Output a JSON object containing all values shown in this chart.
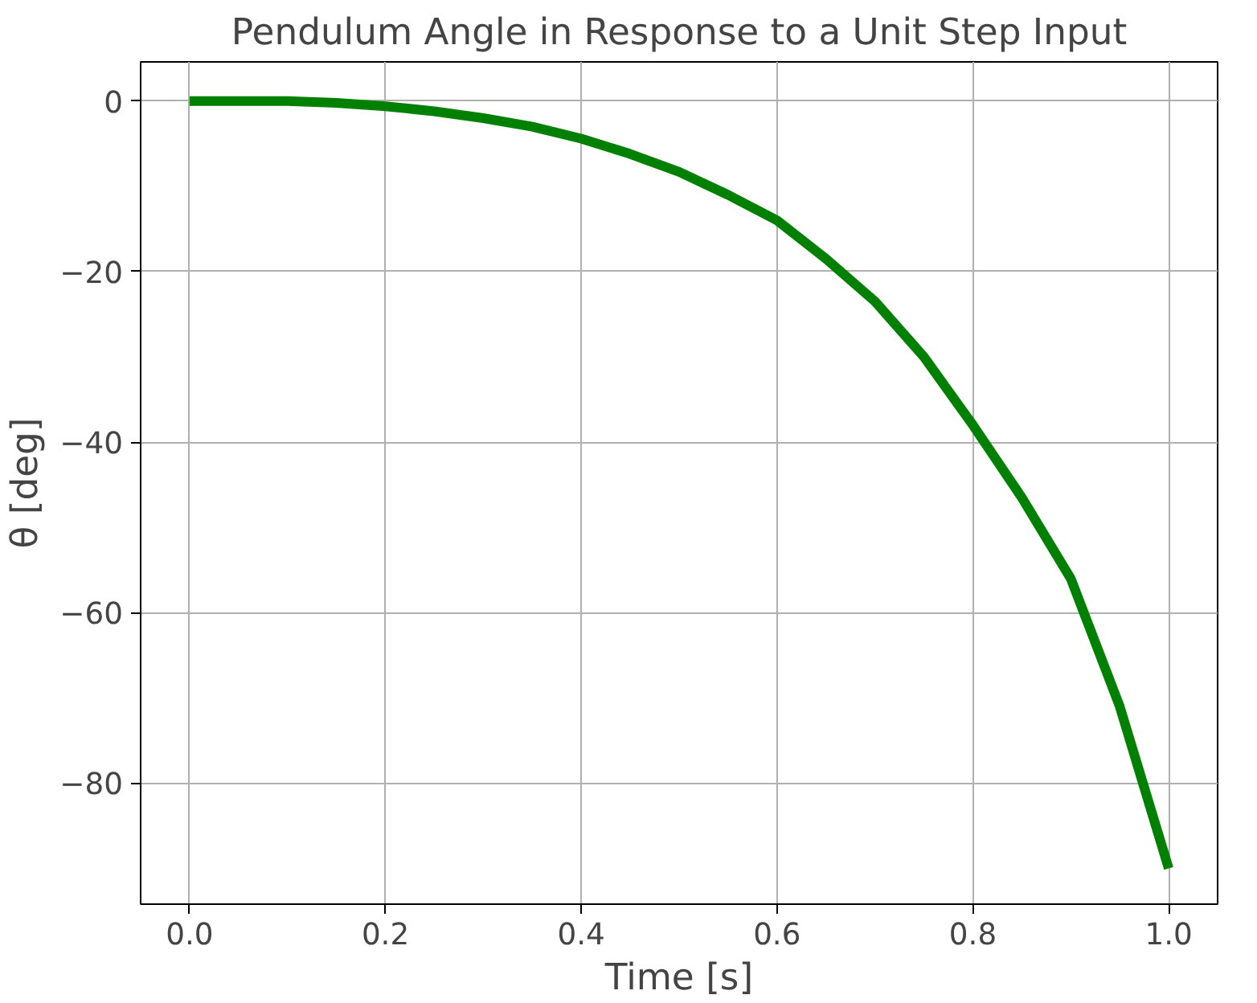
{
  "chart_data": {
    "type": "line",
    "title": "Pendulum Angle in Response to a Unit Step Input",
    "xlabel": "Time [s]",
    "ylabel": "θ [deg]",
    "x": [
      0,
      0.05,
      0.1,
      0.15,
      0.2,
      0.25,
      0.3,
      0.35,
      0.4,
      0.45,
      0.5,
      0.55,
      0.6,
      0.65,
      0.7,
      0.75,
      0.8,
      0.85,
      0.9,
      0.95,
      1.0
    ],
    "series": [
      {
        "color": "#008000",
        "values": [
          0,
          0,
          0,
          -0.2,
          -0.6,
          -1.2,
          -2,
          -3,
          -4.4,
          -6.2,
          -8.3,
          -11,
          -14,
          -18.5,
          -23.5,
          -30,
          -38,
          -46.5,
          -56,
          -71,
          -90
        ]
      }
    ],
    "xlim": [
      -0.05,
      1.05
    ],
    "ylim": [
      -94.2,
      4.6
    ],
    "xticks": [
      {
        "value": 0,
        "label": "0.0"
      },
      {
        "value": 0.2,
        "label": "0.2"
      },
      {
        "value": 0.4,
        "label": "0.4"
      },
      {
        "value": 0.6,
        "label": "0.6"
      },
      {
        "value": 0.8,
        "label": "0.8"
      },
      {
        "value": 1.0,
        "label": "1.0"
      }
    ],
    "yticks": [
      {
        "value": 0,
        "label": "0"
      },
      {
        "value": -20,
        "label": "−20"
      },
      {
        "value": -40,
        "label": "−40"
      },
      {
        "value": -60,
        "label": "−60"
      },
      {
        "value": -80,
        "label": "−80"
      }
    ],
    "grid": true,
    "marker": "none",
    "line_style": "solid"
  }
}
